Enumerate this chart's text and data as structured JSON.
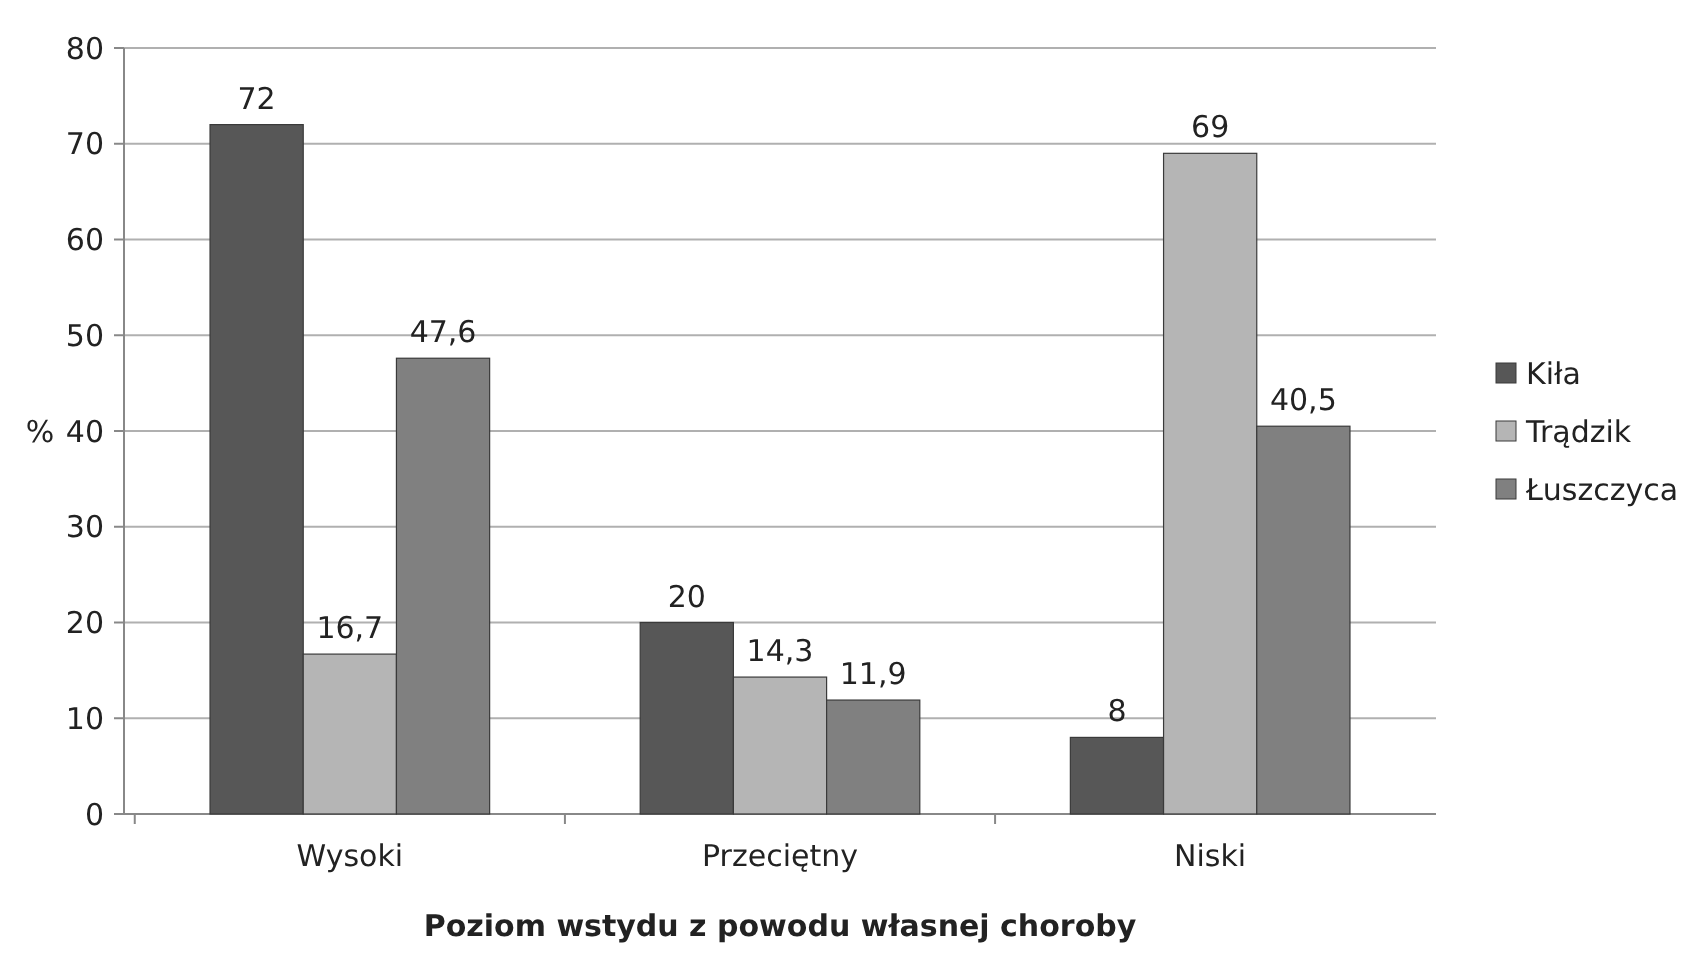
{
  "chart_data": {
    "type": "bar",
    "xlabel": "Poziom wstydu z powodu własnej choroby",
    "ylabel": "%",
    "categories": [
      "Wysoki",
      "Przeciętny",
      "Niski"
    ],
    "series": [
      {
        "name": "Kiła",
        "color": "#575757",
        "values": [
          72,
          20,
          8
        ],
        "value_labels": [
          "72",
          "20",
          "8"
        ]
      },
      {
        "name": "Trądzik",
        "color": "#b5b5b5",
        "values": [
          16.7,
          14.3,
          69
        ],
        "value_labels": [
          "16,7",
          "14,3",
          "69"
        ]
      },
      {
        "name": "Łuszczyca",
        "color": "#808080",
        "values": [
          47.6,
          11.9,
          40.5
        ],
        "value_labels": [
          "47,6",
          "11,9",
          "40,5"
        ]
      }
    ],
    "ylim": [
      0,
      80
    ],
    "yticks": [
      0,
      10,
      20,
      30,
      40,
      50,
      60,
      70,
      80
    ],
    "grid": "y",
    "legend": "right"
  }
}
